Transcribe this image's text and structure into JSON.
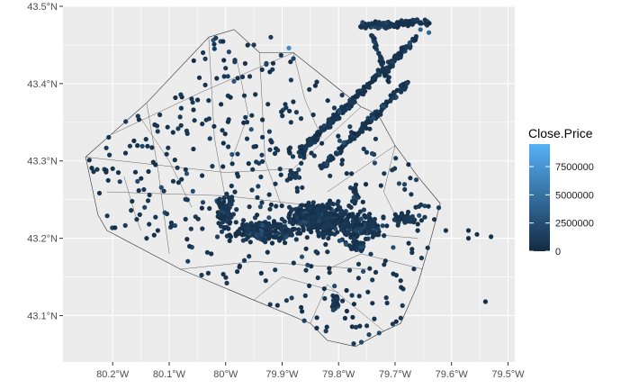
{
  "chart_data": {
    "type": "scatter",
    "title": "",
    "xlabel": "",
    "ylabel": "",
    "x_ticks": [
      {
        "value": -80.2,
        "label": "80.2°W"
      },
      {
        "value": -80.1,
        "label": "80.1°W"
      },
      {
        "value": -80.0,
        "label": "80°W"
      },
      {
        "value": -79.9,
        "label": "79.9°W"
      },
      {
        "value": -79.8,
        "label": "79.8°W"
      },
      {
        "value": -79.7,
        "label": "79.7°W"
      },
      {
        "value": -79.6,
        "label": "79.6°W"
      },
      {
        "value": -79.5,
        "label": "79.5°W"
      }
    ],
    "y_ticks": [
      {
        "value": 43.1,
        "label": "43.1°N"
      },
      {
        "value": 43.2,
        "label": "43.2°N"
      },
      {
        "value": 43.3,
        "label": "43.3°N"
      },
      {
        "value": 43.4,
        "label": "43.4°N"
      },
      {
        "value": 43.5,
        "label": "43.5°N"
      }
    ],
    "xlim": [
      -80.288,
      -79.488
    ],
    "ylim": [
      43.04,
      43.5
    ],
    "grid": true,
    "panel_color": "#ebebeb",
    "legend": {
      "title": "Close.Price",
      "placement": "right",
      "low_color": "#132b43",
      "high_color": "#56b1f7",
      "range": [
        0,
        9500000
      ],
      "breaks": [
        {
          "value": 0,
          "label": "0"
        },
        {
          "value": 2500000,
          "label": "2500000"
        },
        {
          "value": 5000000,
          "label": "5000000"
        },
        {
          "value": 7500000,
          "label": "7500000"
        }
      ]
    },
    "boundary": [
      [
        -80.248,
        43.305
      ],
      [
        -80.14,
        43.375
      ],
      [
        -80.03,
        43.46
      ],
      [
        -79.985,
        43.47
      ],
      [
        -79.94,
        43.44
      ],
      [
        -79.88,
        43.44
      ],
      [
        -79.76,
        43.37
      ],
      [
        -79.73,
        43.36
      ],
      [
        -79.7,
        43.32
      ],
      [
        -79.66,
        43.28
      ],
      [
        -79.62,
        43.245
      ],
      [
        -79.64,
        43.19
      ],
      [
        -79.66,
        43.14
      ],
      [
        -79.69,
        43.09
      ],
      [
        -79.72,
        43.08
      ],
      [
        -79.77,
        43.06
      ],
      [
        -79.82,
        43.068
      ],
      [
        -79.85,
        43.09
      ],
      [
        -79.95,
        43.12
      ],
      [
        -80.08,
        43.16
      ],
      [
        -80.21,
        43.21
      ],
      [
        -80.226,
        43.23
      ]
    ],
    "districts": [
      [
        [
          -80.14,
          43.375
        ],
        [
          -80.12,
          43.29
        ],
        [
          -80.1,
          43.18
        ]
      ],
      [
        [
          -80.03,
          43.46
        ],
        [
          -80.02,
          43.33
        ],
        [
          -80.0,
          43.25
        ]
      ],
      [
        [
          -80.248,
          43.305
        ],
        [
          -80.0,
          43.285
        ],
        [
          -79.88,
          43.29
        ]
      ],
      [
        [
          -80.2,
          43.335
        ],
        [
          -80.04,
          43.39
        ],
        [
          -79.88,
          43.44
        ]
      ],
      [
        [
          -80.21,
          43.26
        ],
        [
          -80.0,
          43.255
        ],
        [
          -79.82,
          43.24
        ]
      ],
      [
        [
          -79.94,
          43.44
        ],
        [
          -79.93,
          43.3
        ],
        [
          -79.9,
          43.24
        ]
      ],
      [
        [
          -79.88,
          43.29
        ],
        [
          -79.76,
          43.37
        ]
      ],
      [
        [
          -79.82,
          43.26
        ],
        [
          -79.76,
          43.29
        ],
        [
          -79.7,
          43.32
        ]
      ],
      [
        [
          -79.9,
          43.22
        ],
        [
          -79.82,
          43.21
        ],
        [
          -79.66,
          43.2
        ]
      ],
      [
        [
          -80.08,
          43.16
        ],
        [
          -79.95,
          43.17
        ],
        [
          -79.75,
          43.16
        ]
      ],
      [
        [
          -79.95,
          43.12
        ],
        [
          -79.9,
          43.15
        ],
        [
          -79.8,
          43.13
        ]
      ],
      [
        [
          -79.85,
          43.09
        ],
        [
          -79.82,
          43.14
        ],
        [
          -79.72,
          43.08
        ]
      ],
      [
        [
          -80.15,
          43.355
        ],
        [
          -80.1,
          43.3
        ],
        [
          -80.06,
          43.24
        ]
      ],
      [
        [
          -79.98,
          43.43
        ],
        [
          -79.96,
          43.36
        ],
        [
          -79.99,
          43.3
        ]
      ],
      [
        [
          -79.88,
          43.44
        ],
        [
          -79.86,
          43.38
        ],
        [
          -79.83,
          43.33
        ]
      ],
      [
        [
          -80.18,
          43.28
        ],
        [
          -80.16,
          43.23
        ],
        [
          -80.15,
          43.21
        ]
      ],
      [
        [
          -79.7,
          43.32
        ],
        [
          -79.72,
          43.26
        ],
        [
          -79.7,
          43.23
        ]
      ],
      [
        [
          -79.65,
          43.16
        ],
        [
          -79.76,
          43.18
        ],
        [
          -79.82,
          43.16
        ]
      ]
    ],
    "clusters": [
      {
        "cx": -79.83,
        "cy": 43.225,
        "rx": 0.09,
        "ry": 0.028,
        "n": 320
      },
      {
        "cx": -79.93,
        "cy": 43.21,
        "rx": 0.08,
        "ry": 0.02,
        "n": 180
      },
      {
        "cx": -80.0,
        "cy": 43.235,
        "rx": 0.025,
        "ry": 0.025,
        "n": 80
      },
      {
        "cx": -79.76,
        "cy": 43.215,
        "rx": 0.05,
        "ry": 0.022,
        "n": 120
      },
      {
        "cx": -79.68,
        "cy": 43.225,
        "rx": 0.04,
        "ry": 0.01,
        "n": 40
      },
      {
        "cx": -79.77,
        "cy": 43.19,
        "rx": 0.02,
        "ry": 0.01,
        "n": 30
      },
      {
        "cx": -79.805,
        "cy": 43.115,
        "rx": 0.008,
        "ry": 0.012,
        "n": 25
      },
      {
        "cx": -79.77,
        "cy": 43.26,
        "rx": 0.01,
        "ry": 0.02,
        "n": 20
      },
      {
        "cx": -79.88,
        "cy": 43.28,
        "rx": 0.015,
        "ry": 0.01,
        "n": 20
      }
    ],
    "bands": [
      {
        "x0": -79.87,
        "y0": 43.31,
        "x1": -79.66,
        "y1": 43.46,
        "width": 0.012,
        "n": 220
      },
      {
        "x0": -79.83,
        "y0": 43.29,
        "x1": -79.68,
        "y1": 43.4,
        "width": 0.01,
        "n": 160
      },
      {
        "x0": -79.76,
        "y0": 43.475,
        "x1": -79.64,
        "y1": 43.48,
        "width": 0.01,
        "n": 120
      },
      {
        "x0": -79.74,
        "y0": 43.46,
        "x1": -79.71,
        "y1": 43.4,
        "width": 0.008,
        "n": 40
      }
    ],
    "scattered_count": 420,
    "points": [
      {
        "x": -79.888,
        "y": 43.446,
        "price": 6800000
      },
      {
        "x": -79.64,
        "y": 43.466,
        "price": 4200000
      },
      {
        "x": -79.655,
        "y": 43.47,
        "price": 3800000
      },
      {
        "x": -79.54,
        "y": 43.118,
        "price": 300000
      },
      {
        "x": -79.57,
        "y": 43.21,
        "price": 400000
      },
      {
        "x": -79.57,
        "y": 43.2,
        "price": 500000
      },
      {
        "x": -79.555,
        "y": 43.205,
        "price": 350000
      },
      {
        "x": -79.53,
        "y": 43.202,
        "price": 400000
      },
      {
        "x": -79.61,
        "y": 43.21,
        "price": 600000
      },
      {
        "x": -79.66,
        "y": 43.21,
        "price": 500000
      },
      {
        "x": -80.2,
        "y": 43.29,
        "price": 500000
      },
      {
        "x": -80.19,
        "y": 43.285,
        "price": 450000
      },
      {
        "x": -80.14,
        "y": 43.2,
        "price": 700000
      },
      {
        "x": -80.12,
        "y": 43.21,
        "price": 600000
      },
      {
        "x": -80.04,
        "y": 43.44,
        "price": 800000
      },
      {
        "x": -80.0,
        "y": 43.42,
        "price": 900000
      },
      {
        "x": -79.95,
        "y": 43.45,
        "price": 1100000
      },
      {
        "x": -79.92,
        "y": 43.46,
        "price": 1200000
      }
    ]
  }
}
